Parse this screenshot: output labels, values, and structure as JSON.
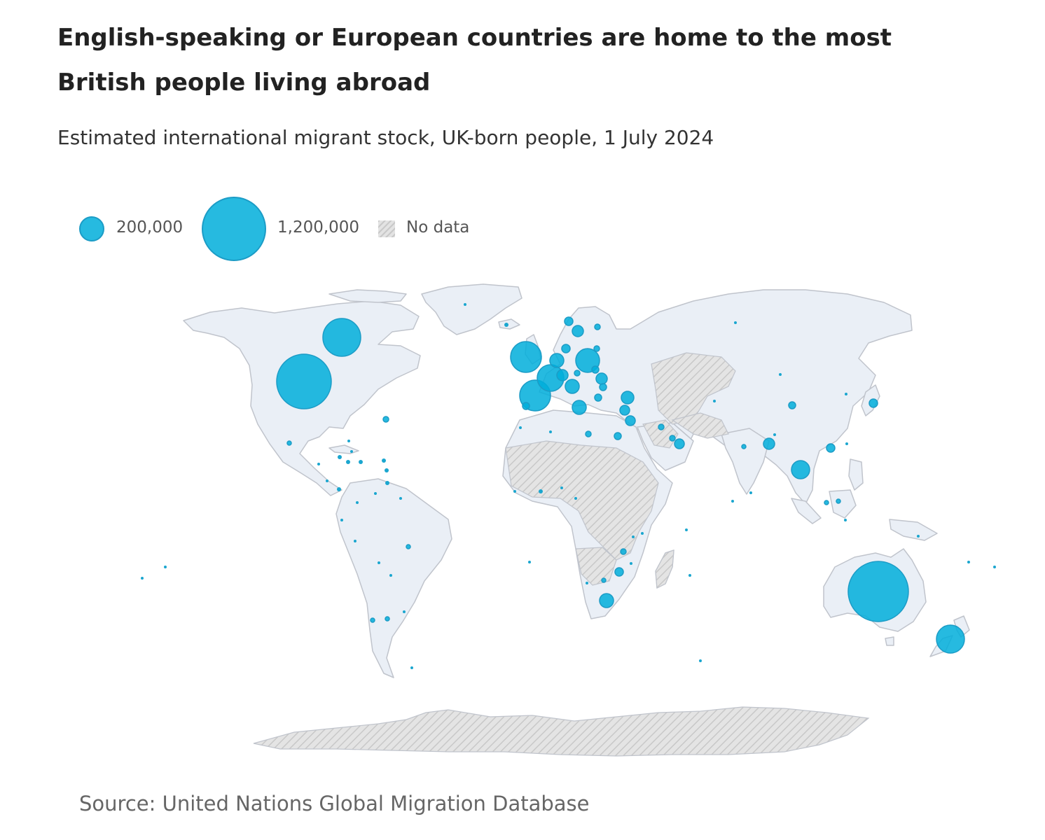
{
  "title": "English-speaking or European countries are home to the most British people living abroad",
  "subtitle": "Estimated international migrant stock, UK-born people, 1 July 2024",
  "legend": {
    "small_label": "200,000",
    "small_value": 200000,
    "large_label": "1,200,000",
    "large_value": 1200000,
    "nodata_label": "No data"
  },
  "source": "Source: United Nations Global Migration Database",
  "colors": {
    "bubble": "#00aedb",
    "bubble_stroke": "#1c9cc6",
    "land": "#eaeff6",
    "border": "#c0c4cc",
    "no_data": "#dcdcdc"
  },
  "map_data": {
    "type": "proportional-symbol-map",
    "measure": "UK-born migrant stock",
    "estimated_values": {
      "Australia": 1200000,
      "United States": 720000,
      "Canada": 340000,
      "Spain": 280000,
      "Ireland": 240000,
      "France": 200000,
      "New Zealand": 200000,
      "Germany": 170000,
      "Thailand": 90000,
      "South Africa": 55000,
      "Italy": 55000,
      "Netherlands": 55000,
      "Switzerland": 45000,
      "Belgium": 40000,
      "Portugal": 45000,
      "Cyprus": 38000,
      "Sweden": 30000,
      "Greece": 30000,
      "Malta": 25000,
      "Denmark": 25000,
      "Norway": 18000,
      "Austria": 22000,
      "India": 20000,
      "Japan": 18000,
      "China": 14000,
      "Israel": 25000,
      "Hong Kong": 15000,
      "Poland": 15000,
      "Czechia": 12000,
      "Hungary": 10000,
      "Lebanon": 12000,
      "Egypt": 15000,
      "Libya": 8000,
      "UAE": 10000,
      "Qatar": 8000,
      "Bahrain": 6000,
      "Zimbabwe": 18000,
      "Zambia": 6000,
      "Mozambique": 10000,
      "Malawi": 4000,
      "Kenya": 6000,
      "Brazil": 6000,
      "Argentina": 4000,
      "Chile": 4000,
      "Mexico": 5000,
      "Bermuda": 5000
    }
  }
}
